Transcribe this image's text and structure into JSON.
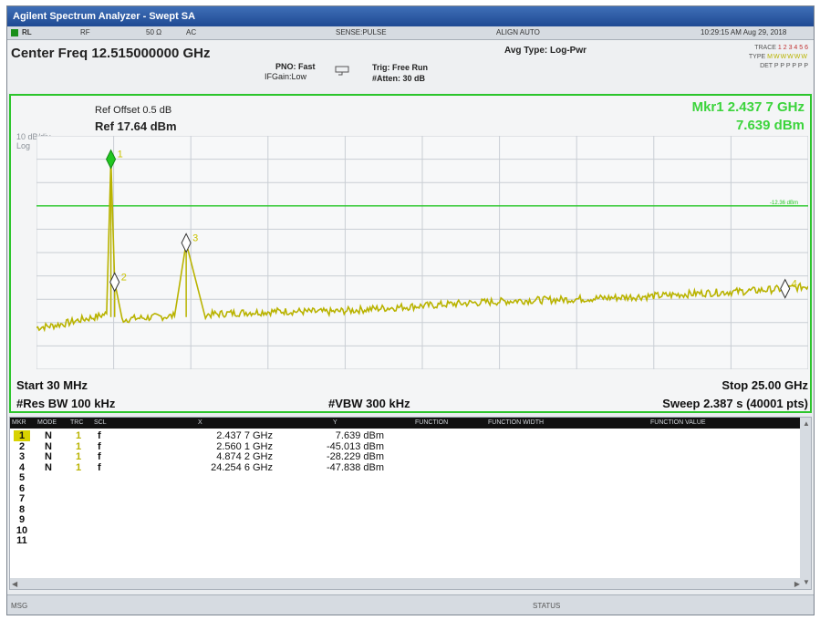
{
  "window": {
    "title": "Agilent Spectrum Analyzer - Swept SA"
  },
  "status_bar": {
    "rl": "RL",
    "rf": "RF",
    "impedance": "50 Ω",
    "coupling": "AC",
    "sense": "SENSE:PULSE",
    "align": "ALIGN AUTO",
    "datetime": "10:29:15 AM Aug 29, 2018"
  },
  "header": {
    "center_freq": "Center Freq 12.515000000 GHz",
    "pno": "PNO: Fast",
    "if_gain": "IFGain:Low",
    "trig": "Trig: Free Run",
    "atten": "#Atten: 30 dB",
    "avg_type": "Avg Type: Log-Pwr",
    "trace_label": "TRACE",
    "trace_value": "1 2 3 4 5 6",
    "type_label": "TYPE",
    "type_value": "MWWWWW",
    "det_label": "DET",
    "det_value": "P P P P P P"
  },
  "chart_info": {
    "db_div": "10 dB/div",
    "scale": "Log",
    "ref_offset": "Ref Offset 0.5 dB",
    "ref_level": "Ref 17.64 dBm",
    "mkr_freq": "Mkr1 2.437 7 GHz",
    "mkr_value": "7.639 dBm",
    "start": "Start 30 MHz",
    "stop": "Stop 25.00 GHz",
    "res_bw": "#Res BW 100 kHz",
    "vbw": "#VBW 300 kHz",
    "sweep": "Sweep  2.387 s (40001 pts)"
  },
  "chart_data": {
    "type": "line",
    "xlabel": "",
    "ylabel": "",
    "xlim": [
      0.03,
      25.0
    ],
    "ylim": [
      -82.36,
      17.64
    ],
    "y_ticks": [
      "7.64",
      "-2.36",
      "-12.4",
      "-22.4",
      "-32.4",
      "-42.4",
      "-52.4",
      "-62.4",
      "-72.4"
    ],
    "limit_line": {
      "value": -12.36,
      "label": "-12.36 dBm"
    },
    "series": [
      {
        "x": [
          0.03,
          0.5,
          1.0,
          1.5,
          2.0,
          2.3,
          2.437,
          2.56,
          2.8,
          3.5,
          4.5,
          4.874,
          5.5,
          6.5,
          8.0,
          9.5,
          11.0,
          12.5,
          14.0,
          15.5,
          17.0,
          18.5,
          20.0,
          21.5,
          23.0,
          24.2546,
          25.0
        ],
        "values": [
          -64.5,
          -63.8,
          -62.6,
          -61.0,
          -59.8,
          -58.5,
          7.639,
          -45.0,
          -61.0,
          -60.3,
          -59.5,
          -28.2,
          -59.0,
          -58.2,
          -57.5,
          -57.8,
          -56.4,
          -55.2,
          -54.0,
          -53.0,
          -52.5,
          -51.8,
          -51.0,
          -49.8,
          -48.9,
          -47.838,
          -46.8
        ]
      }
    ],
    "markers": [
      {
        "label": "1",
        "x": 2.4377,
        "y": 7.639
      },
      {
        "label": "2",
        "x": 2.5601,
        "y": -45.013
      },
      {
        "label": "3",
        "x": 4.8742,
        "y": -28.229
      },
      {
        "label": "4",
        "x": 24.2546,
        "y": -47.838
      }
    ]
  },
  "table": {
    "headers": [
      "MKR",
      "MODE",
      "TRC",
      "SCL",
      "X",
      "Y",
      "FUNCTION",
      "FUNCTION WIDTH",
      "FUNCTION VALUE"
    ],
    "rows": [
      {
        "n": "1",
        "mode": "N",
        "trc": "1",
        "scl": "f",
        "x": "2.437 7 GHz",
        "y": "7.639 dBm"
      },
      {
        "n": "2",
        "mode": "N",
        "trc": "1",
        "scl": "f",
        "x": "2.560 1 GHz",
        "y": "-45.013 dBm"
      },
      {
        "n": "3",
        "mode": "N",
        "trc": "1",
        "scl": "f",
        "x": "4.874 2 GHz",
        "y": "-28.229 dBm"
      },
      {
        "n": "4",
        "mode": "N",
        "trc": "1",
        "scl": "f",
        "x": "24.254 6 GHz",
        "y": "-47.838 dBm"
      },
      {
        "n": "5"
      },
      {
        "n": "6"
      },
      {
        "n": "7"
      },
      {
        "n": "8"
      },
      {
        "n": "9"
      },
      {
        "n": "10"
      },
      {
        "n": "11"
      }
    ]
  },
  "bottom_bar": {
    "msg": "MSG",
    "status": "STATUS"
  },
  "colors": {
    "trace": "#b9b300",
    "frame": "#2cc52c",
    "marker_text": "#3cd43c",
    "active_marker": "#22c722"
  }
}
